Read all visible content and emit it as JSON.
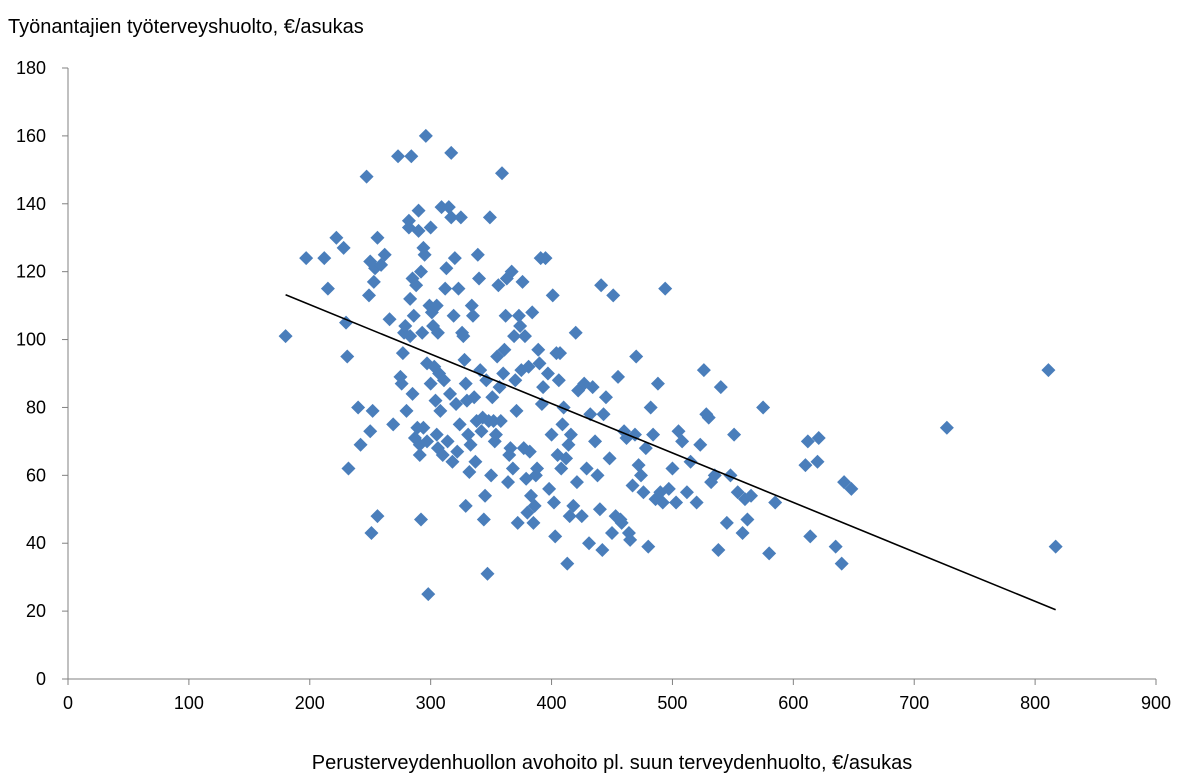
{
  "chart_data": {
    "type": "scatter",
    "title": "",
    "ylabel": "Työnantajien työterveyshuolto, €/asukas",
    "xlabel": "Perusterveydenhuollon avohoito pl. suun  terveydenhuolto, €/asukas",
    "xlim": [
      0,
      900
    ],
    "ylim": [
      0,
      180
    ],
    "x_ticks": [
      "0",
      "100",
      "200",
      "300",
      "400",
      "500",
      "600",
      "700",
      "800",
      "900"
    ],
    "y_ticks": [
      "0",
      "20",
      "40",
      "60",
      "80",
      "100",
      "120",
      "140",
      "160",
      "180"
    ],
    "grid": false,
    "legend": "none",
    "marker": "diamond",
    "marker_color": "#4a7ebb",
    "trendline": {
      "type": "linear",
      "x": [
        180,
        817
      ],
      "y": [
        113.2,
        20.4
      ],
      "color": "#000000"
    },
    "points": [
      [
        180,
        101
      ],
      [
        197,
        124
      ],
      [
        212,
        124
      ],
      [
        215,
        115
      ],
      [
        222,
        130
      ],
      [
        228,
        127
      ],
      [
        230,
        105
      ],
      [
        231,
        95
      ],
      [
        232,
        62
      ],
      [
        240,
        80
      ],
      [
        242,
        69
      ],
      [
        247,
        148
      ],
      [
        249,
        113
      ],
      [
        250,
        123
      ],
      [
        250,
        73
      ],
      [
        251,
        43
      ],
      [
        252,
        79
      ],
      [
        253,
        117
      ],
      [
        254,
        121
      ],
      [
        256,
        130
      ],
      [
        256,
        48
      ],
      [
        259,
        122
      ],
      [
        262,
        125
      ],
      [
        266,
        106
      ],
      [
        269,
        75
      ],
      [
        273,
        154
      ],
      [
        275,
        89
      ],
      [
        276,
        87
      ],
      [
        277,
        96
      ],
      [
        278,
        102
      ],
      [
        279,
        104
      ],
      [
        280,
        79
      ],
      [
        282,
        135
      ],
      [
        282,
        133
      ],
      [
        283,
        112
      ],
      [
        283,
        101
      ],
      [
        284,
        154
      ],
      [
        285,
        118
      ],
      [
        285,
        84
      ],
      [
        286,
        107
      ],
      [
        287,
        71
      ],
      [
        288,
        116
      ],
      [
        289,
        74
      ],
      [
        290,
        132
      ],
      [
        290,
        138
      ],
      [
        291,
        66
      ],
      [
        291,
        69
      ],
      [
        292,
        47
      ],
      [
        292,
        120
      ],
      [
        293,
        102
      ],
      [
        294,
        127
      ],
      [
        294,
        74
      ],
      [
        295,
        125
      ],
      [
        296,
        160
      ],
      [
        297,
        93
      ],
      [
        297,
        70
      ],
      [
        298,
        25
      ],
      [
        299,
        110
      ],
      [
        300,
        133
      ],
      [
        300,
        87
      ],
      [
        301,
        108
      ],
      [
        302,
        104
      ],
      [
        303,
        92
      ],
      [
        304,
        82
      ],
      [
        305,
        110
      ],
      [
        305,
        72
      ],
      [
        306,
        102
      ],
      [
        306,
        68
      ],
      [
        307,
        90
      ],
      [
        308,
        79
      ],
      [
        309,
        139
      ],
      [
        310,
        66
      ],
      [
        311,
        88
      ],
      [
        312,
        115
      ],
      [
        313,
        121
      ],
      [
        314,
        70
      ],
      [
        315,
        139
      ],
      [
        316,
        84
      ],
      [
        317,
        155
      ],
      [
        317,
        136
      ],
      [
        318,
        64
      ],
      [
        319,
        107
      ],
      [
        320,
        124
      ],
      [
        321,
        81
      ],
      [
        322,
        67
      ],
      [
        323,
        115
      ],
      [
        324,
        75
      ],
      [
        325,
        136
      ],
      [
        326,
        102
      ],
      [
        327,
        101
      ],
      [
        328,
        94
      ],
      [
        329,
        51
      ],
      [
        329,
        87
      ],
      [
        330,
        82
      ],
      [
        331,
        72
      ],
      [
        332,
        61
      ],
      [
        333,
        69
      ],
      [
        334,
        110
      ],
      [
        335,
        107
      ],
      [
        336,
        83
      ],
      [
        337,
        64
      ],
      [
        338,
        76
      ],
      [
        339,
        125
      ],
      [
        340,
        118
      ],
      [
        341,
        91
      ],
      [
        342,
        73
      ],
      [
        343,
        77
      ],
      [
        344,
        47
      ],
      [
        345,
        54
      ],
      [
        346,
        88
      ],
      [
        347,
        31
      ],
      [
        348,
        76
      ],
      [
        349,
        136
      ],
      [
        350,
        60
      ],
      [
        351,
        83
      ],
      [
        352,
        76
      ],
      [
        353,
        70
      ],
      [
        354,
        72
      ],
      [
        355,
        95
      ],
      [
        356,
        116
      ],
      [
        357,
        86
      ],
      [
        358,
        76
      ],
      [
        359,
        149
      ],
      [
        360,
        90
      ],
      [
        361,
        97
      ],
      [
        362,
        107
      ],
      [
        363,
        118
      ],
      [
        364,
        58
      ],
      [
        365,
        66
      ],
      [
        366,
        68
      ],
      [
        367,
        120
      ],
      [
        368,
        62
      ],
      [
        369,
        101
      ],
      [
        370,
        88
      ],
      [
        371,
        79
      ],
      [
        372,
        46
      ],
      [
        373,
        107
      ],
      [
        374,
        104
      ],
      [
        375,
        91
      ],
      [
        376,
        117
      ],
      [
        377,
        68
      ],
      [
        378,
        101
      ],
      [
        379,
        59
      ],
      [
        380,
        49
      ],
      [
        381,
        92
      ],
      [
        382,
        67
      ],
      [
        383,
        54
      ],
      [
        384,
        108
      ],
      [
        385,
        46
      ],
      [
        386,
        51
      ],
      [
        387,
        60
      ],
      [
        388,
        62
      ],
      [
        389,
        97
      ],
      [
        390,
        93
      ],
      [
        391,
        124
      ],
      [
        392,
        81
      ],
      [
        393,
        86
      ],
      [
        395,
        124
      ],
      [
        397,
        90
      ],
      [
        398,
        56
      ],
      [
        400,
        72
      ],
      [
        401,
        113
      ],
      [
        402,
        52
      ],
      [
        403,
        42
      ],
      [
        404,
        96
      ],
      [
        405,
        66
      ],
      [
        406,
        88
      ],
      [
        407,
        96
      ],
      [
        408,
        62
      ],
      [
        409,
        75
      ],
      [
        410,
        80
      ],
      [
        412,
        65
      ],
      [
        413,
        34
      ],
      [
        414,
        69
      ],
      [
        415,
        48
      ],
      [
        416,
        72
      ],
      [
        418,
        51
      ],
      [
        420,
        102
      ],
      [
        421,
        58
      ],
      [
        422,
        85
      ],
      [
        425,
        48
      ],
      [
        427,
        87
      ],
      [
        429,
        62
      ],
      [
        431,
        40
      ],
      [
        432,
        78
      ],
      [
        434,
        86
      ],
      [
        436,
        70
      ],
      [
        438,
        60
      ],
      [
        440,
        50
      ],
      [
        441,
        116
      ],
      [
        442,
        38
      ],
      [
        443,
        78
      ],
      [
        445,
        83
      ],
      [
        448,
        65
      ],
      [
        450,
        43
      ],
      [
        451,
        113
      ],
      [
        453,
        48
      ],
      [
        455,
        89
      ],
      [
        457,
        47
      ],
      [
        458,
        46
      ],
      [
        460,
        73
      ],
      [
        462,
        71
      ],
      [
        464,
        43
      ],
      [
        465,
        41
      ],
      [
        467,
        57
      ],
      [
        469,
        72
      ],
      [
        470,
        95
      ],
      [
        472,
        63
      ],
      [
        474,
        60
      ],
      [
        476,
        55
      ],
      [
        478,
        68
      ],
      [
        480,
        39
      ],
      [
        482,
        80
      ],
      [
        484,
        72
      ],
      [
        486,
        53
      ],
      [
        488,
        87
      ],
      [
        490,
        55
      ],
      [
        492,
        52
      ],
      [
        494,
        115
      ],
      [
        497,
        56
      ],
      [
        500,
        62
      ],
      [
        503,
        52
      ],
      [
        505,
        73
      ],
      [
        508,
        70
      ],
      [
        512,
        55
      ],
      [
        515,
        64
      ],
      [
        520,
        52
      ],
      [
        523,
        69
      ],
      [
        526,
        91
      ],
      [
        528,
        78
      ],
      [
        530,
        77
      ],
      [
        532,
        58
      ],
      [
        535,
        60
      ],
      [
        538,
        38
      ],
      [
        540,
        86
      ],
      [
        545,
        46
      ],
      [
        548,
        60
      ],
      [
        551,
        72
      ],
      [
        554,
        55
      ],
      [
        558,
        43
      ],
      [
        560,
        53
      ],
      [
        562,
        47
      ],
      [
        565,
        54
      ],
      [
        575,
        80
      ],
      [
        580,
        37
      ],
      [
        585,
        52
      ],
      [
        610,
        63
      ],
      [
        612,
        70
      ],
      [
        614,
        42
      ],
      [
        620,
        64
      ],
      [
        621,
        71
      ],
      [
        635,
        39
      ],
      [
        640,
        34
      ],
      [
        642,
        58
      ],
      [
        648,
        56
      ],
      [
        727,
        74
      ],
      [
        811,
        91
      ],
      [
        817,
        39
      ]
    ]
  }
}
